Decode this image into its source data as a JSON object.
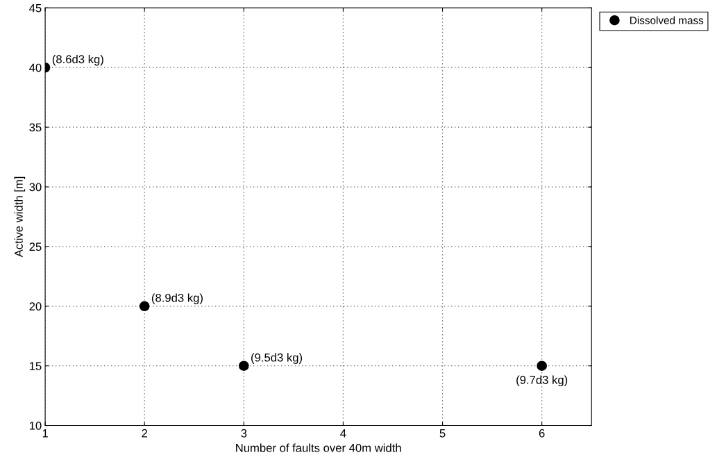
{
  "chart_data": {
    "type": "scatter",
    "xlabel": "Number of faults over 40m width",
    "ylabel": "Active width [m]",
    "x": [
      1,
      2,
      3,
      6
    ],
    "series": [
      {
        "name": "Dissolved mass",
        "color": "#000000",
        "values": [
          40,
          20,
          15,
          15
        ]
      }
    ],
    "xlim": [
      1,
      6.5
    ],
    "xticks": [
      1,
      2,
      3,
      4,
      5,
      6
    ],
    "ylim": [
      10,
      45
    ],
    "yticks": [
      10,
      15,
      20,
      25,
      30,
      35,
      40,
      45
    ],
    "grid": true,
    "legend": "top right",
    "marker": "circle",
    "annotations": [
      {
        "text": "(8.6d3 kg)",
        "x": 1,
        "y": 40
      },
      {
        "text": "(8.9d3 kg)",
        "x": 2,
        "y": 20
      },
      {
        "text": "(9.5d3 kg)",
        "x": 3,
        "y": 15
      },
      {
        "text": "(9.7d3 kg)",
        "x": 6,
        "y": 15
      }
    ]
  }
}
